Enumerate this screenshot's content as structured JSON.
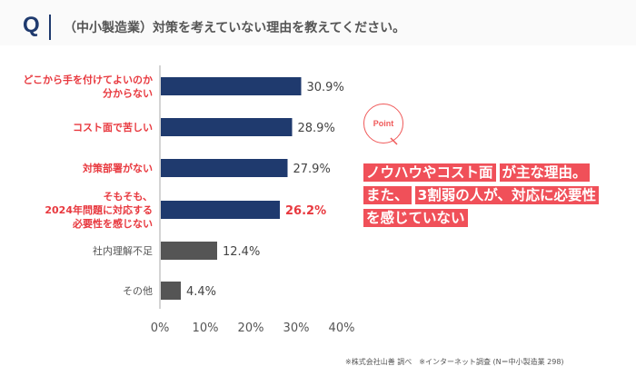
{
  "header": {
    "q": "Q",
    "title": "（中小製造業）対策を考えていない理由を教えてください。"
  },
  "chart_data": {
    "type": "bar",
    "orientation": "horizontal",
    "categories": [
      "どこから手を付けてよいのか\n分からない",
      "コスト面で苦しい",
      "対策部署がない",
      "そもそも、\n2024年問題に対応する\n必要性を感じない",
      "社内理解不足",
      "その他"
    ],
    "values": [
      30.9,
      28.9,
      27.9,
      26.2,
      12.4,
      4.4
    ],
    "value_labels": [
      "30.9%",
      "28.9%",
      "27.9%",
      "26.2%",
      "12.4%",
      "4.4%"
    ],
    "xlim": [
      0,
      40
    ],
    "xticks": [
      "0%",
      "10%",
      "20%",
      "30%",
      "40%"
    ],
    "colors": {
      "highlight_bar": "#1f3a6e",
      "other_bar": "#555555",
      "highlight_label": "#e8393f",
      "other_label": "#555555"
    },
    "highlight_count": 4,
    "emphasized_value_index": 3
  },
  "point": {
    "label": "Point",
    "lines": [
      [
        "ノウハウやコスト面",
        "が主な理由。"
      ],
      [
        "また、",
        "3割弱の人が、対応に必要性"
      ],
      [
        "を感じていない"
      ]
    ]
  },
  "footnote": "※株式会社山善 調べ　※インターネット調査 (N＝中小製造業 298)"
}
